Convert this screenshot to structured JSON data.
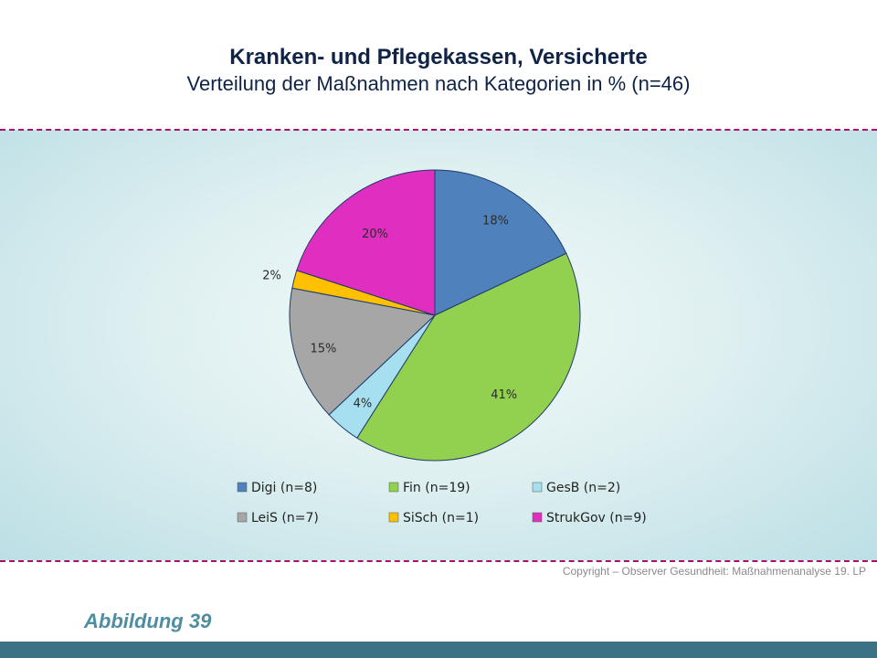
{
  "header": {
    "title": "Kranken- und Pflegekassen, Versicherte",
    "subtitle": "Verteilung der Maßnahmen nach Kategorien in % (n=46)"
  },
  "chart_data": {
    "type": "pie",
    "title": "Kranken- und Pflegekassen, Versicherte",
    "subtitle": "Verteilung der Maßnahmen nach Kategorien in % (n=46)",
    "categories": [
      "Digi (n=8)",
      "Fin (n=19)",
      "GesB (n=2)",
      "LeiS (n=7)",
      "SiSch (n=1)",
      "StrukGov (n=9)"
    ],
    "values": [
      18,
      41,
      4,
      15,
      2,
      20
    ],
    "data_labels": [
      "18%",
      "41%",
      "4%",
      "15%",
      "2%",
      "20%"
    ],
    "colors": [
      "#4f81bd",
      "#92d050",
      "#a6dff0",
      "#a6a6a6",
      "#ffc000",
      "#e02ec0"
    ],
    "legend_placement": "bottom",
    "start_angle_deg": 0,
    "direction": "clockwise"
  },
  "footer": {
    "copyright": "Copyright – Observer Gesundheit: Maßnahmenanalyse 19. LP",
    "figure_label": "Abbildung 39"
  }
}
